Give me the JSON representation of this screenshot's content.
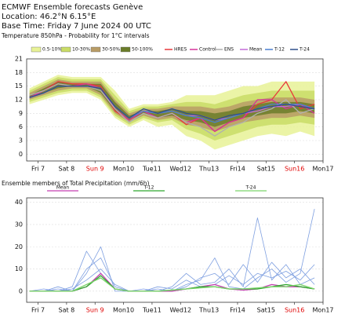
{
  "chart_data": [
    {
      "type": "line",
      "title": "ECMWF Ensemble forecasts Genève",
      "subtitle": [
        "Location:  46.2°N 6.15°E",
        "Base Time: Friday  7 June 2024 00 UTC"
      ],
      "description": "Temperature 850hPa - Probability for 1°C intervals",
      "x": [
        0,
        0.5,
        1,
        1.5,
        2,
        2.5,
        3,
        3.5,
        4,
        4.5,
        5,
        5.5,
        6,
        6.5,
        7,
        7.5,
        8,
        8.5,
        9,
        9.5,
        10
      ],
      "xlim": [
        -0.1,
        10.3
      ],
      "xticks": [
        {
          "value": 0.3,
          "label": "Fri 7"
        },
        {
          "value": 1.3,
          "label": "Sat 8"
        },
        {
          "value": 2.3,
          "label": "Sun 9"
        },
        {
          "value": 3.3,
          "label": "Mon10"
        },
        {
          "value": 4.3,
          "label": "Tue11"
        },
        {
          "value": 5.3,
          "label": "Wed12"
        },
        {
          "value": 6.3,
          "label": "Thu13"
        },
        {
          "value": 7.3,
          "label": "Fri14"
        },
        {
          "value": 8.3,
          "label": "Sat15"
        },
        {
          "value": 9.3,
          "label": "Sun16"
        },
        {
          "value": 10.3,
          "label": "Mon17"
        }
      ],
      "highlight_ticks": [
        2,
        9
      ],
      "highlight_color": "#e00000",
      "ylim": [
        -1.5,
        21
      ],
      "yticks": [
        0,
        3,
        6,
        9,
        12,
        15,
        18,
        21
      ],
      "grid": true,
      "bands": [
        {
          "name": "0.5-10%",
          "color": "#e8f296",
          "lower": [
            11,
            12,
            13,
            13.5,
            13.5,
            12,
            8,
            6,
            7.5,
            6,
            6.5,
            4,
            3,
            1,
            2,
            3,
            4,
            4.5,
            4,
            5,
            4
          ],
          "upper": [
            14.5,
            16,
            17.5,
            17,
            17,
            17,
            14,
            10,
            11,
            11,
            11.5,
            13,
            13,
            13,
            14,
            15,
            15,
            16,
            16,
            16,
            16
          ]
        },
        {
          "name": "10-30%",
          "color": "#c9dc66",
          "lower": [
            11.5,
            12.5,
            13.5,
            14,
            14,
            12.5,
            8.5,
            6.5,
            8,
            7,
            7.5,
            5.5,
            4.5,
            3,
            4,
            5,
            6,
            6.5,
            6.5,
            7,
            6.5
          ],
          "upper": [
            14,
            15.5,
            17,
            16.5,
            16.5,
            16.5,
            13,
            9.5,
            10.5,
            10.5,
            11,
            11.5,
            11.5,
            11,
            12,
            13,
            13.5,
            14,
            14,
            14,
            14
          ]
        },
        {
          "name": "30-50%",
          "color": "#b89c66",
          "lower": [
            12,
            13,
            14,
            14.5,
            14.5,
            13,
            9,
            7,
            8.5,
            7.5,
            8,
            6.5,
            6,
            5,
            6,
            7,
            7.5,
            8,
            8,
            8.5,
            8
          ],
          "upper": [
            13.5,
            15,
            16.5,
            16,
            16,
            16,
            12,
            9,
            10,
            10,
            10.5,
            10.5,
            10.5,
            10,
            10.5,
            11.5,
            12,
            12.5,
            12.5,
            12.5,
            12
          ]
        },
        {
          "name": "50-100%",
          "color": "#6b7d2a",
          "lower": [
            12.3,
            13.5,
            14.5,
            15,
            15,
            13.5,
            9.5,
            7.5,
            9,
            8,
            8.5,
            7.5,
            7,
            6,
            7,
            8,
            8.5,
            9,
            9,
            9.5,
            9
          ],
          "upper": [
            13,
            14.5,
            16,
            15.5,
            15.5,
            15.5,
            11.5,
            8.5,
            9.5,
            9.5,
            10,
            9.5,
            9.5,
            9,
            9.5,
            10.5,
            11,
            11.5,
            11.5,
            11.5,
            11
          ]
        }
      ],
      "series": [
        {
          "name": "HRES",
          "color": "#e8393c",
          "values": [
            12.5,
            14,
            16,
            15.5,
            15.5,
            15,
            9.5,
            7.5,
            9.5,
            8,
            9,
            6.5,
            8,
            5,
            7,
            8,
            11,
            12,
            16,
            10,
            11
          ]
        },
        {
          "name": "Control",
          "color": "#d6339a",
          "values": [
            12.5,
            14,
            15.5,
            15,
            15.5,
            14.5,
            10,
            7.5,
            9.5,
            8,
            9,
            7,
            8,
            5,
            7,
            8,
            12,
            12,
            10,
            11,
            9
          ]
        },
        {
          "name": "ENS",
          "color": "#b0b0b0",
          "values": [
            13,
            14,
            15.5,
            15,
            15,
            14,
            10,
            7,
            9,
            8,
            9,
            7,
            6,
            4,
            6,
            7,
            9,
            10,
            12,
            9,
            10
          ]
        },
        {
          "name": "Mean",
          "color": "#c36ad8",
          "values": [
            12.5,
            13.5,
            15,
            15,
            15,
            14.5,
            10.5,
            8,
            9.5,
            9,
            9.5,
            8.5,
            8.5,
            7.5,
            8,
            9,
            9.5,
            10.5,
            10.5,
            11,
            10
          ]
        },
        {
          "name": "T-12",
          "color": "#4a7fd0",
          "values": [
            12.5,
            13.5,
            15,
            15,
            15,
            14.5,
            10.5,
            8,
            9.5,
            9,
            9.5,
            8.5,
            8,
            7,
            8,
            9,
            10,
            11,
            11,
            11,
            10
          ]
        },
        {
          "name": "T-24",
          "color": "#2f4f8a",
          "values": [
            12.5,
            13.5,
            15,
            15,
            15,
            14.5,
            10.5,
            8,
            10,
            9,
            10,
            9,
            8.5,
            7.5,
            8.5,
            9,
            10,
            10.5,
            11,
            10.5,
            10
          ]
        }
      ]
    },
    {
      "type": "line",
      "title": "Ensemble members of Total Precipitation (mm/6h)",
      "x": [
        0,
        0.5,
        1,
        1.5,
        2,
        2.5,
        3,
        3.5,
        4,
        4.5,
        5,
        5.5,
        6,
        6.5,
        7,
        7.5,
        8,
        8.5,
        9,
        9.5,
        10
      ],
      "xlim": [
        -0.1,
        10.3
      ],
      "xticks": [
        {
          "value": 0.3,
          "label": "Fri 7"
        },
        {
          "value": 1.3,
          "label": "Sat 8"
        },
        {
          "value": 2.3,
          "label": "Sun 9"
        },
        {
          "value": 3.3,
          "label": "Mon10"
        },
        {
          "value": 4.3,
          "label": "Tue11"
        },
        {
          "value": 5.3,
          "label": "Wed12"
        },
        {
          "value": 6.3,
          "label": "Thu13"
        },
        {
          "value": 7.3,
          "label": "Fri14"
        },
        {
          "value": 8.3,
          "label": "Sat15"
        },
        {
          "value": 9.3,
          "label": "Sun16"
        },
        {
          "value": 10.3,
          "label": "Mon17"
        }
      ],
      "highlight_ticks": [
        2,
        9
      ],
      "highlight_color": "#e00000",
      "ylim": [
        -5,
        42
      ],
      "yticks": [
        0,
        10,
        20,
        30,
        40
      ],
      "grid": true,
      "member_color": "#7e9fe0",
      "members": [
        [
          0,
          0,
          1,
          0,
          10,
          15,
          2,
          0,
          0,
          1,
          0,
          3,
          5,
          15,
          2,
          1,
          6,
          10,
          4,
          8,
          37
        ],
        [
          0,
          1,
          0,
          2,
          18,
          8,
          1,
          0,
          0,
          0,
          2,
          8,
          3,
          4,
          10,
          2,
          33,
          5,
          12,
          3,
          6
        ],
        [
          0,
          0,
          0,
          1,
          5,
          10,
          3,
          0,
          1,
          0,
          0,
          2,
          6,
          8,
          3,
          12,
          4,
          13,
          6,
          10,
          3
        ],
        [
          0,
          0,
          2,
          0,
          8,
          20,
          0,
          0,
          0,
          2,
          1,
          5,
          2,
          3,
          7,
          3,
          8,
          6,
          9,
          5,
          12
        ]
      ],
      "series": [
        {
          "name": "Mean",
          "color": "#c33fb0",
          "values": [
            0,
            0,
            0,
            0,
            2,
            8,
            1,
            0,
            0,
            0,
            0,
            1,
            2,
            3,
            1,
            0.5,
            1,
            3,
            2,
            2,
            1
          ]
        },
        {
          "name": "T-12",
          "color": "#2fa82f",
          "values": [
            0,
            0,
            0,
            0,
            2,
            7,
            1,
            0,
            0,
            0,
            0.5,
            1,
            2,
            2,
            1,
            1,
            1,
            2,
            3,
            2,
            1
          ]
        },
        {
          "name": "T-24",
          "color": "#7ad46a",
          "values": [
            0,
            0,
            0,
            0,
            3,
            6,
            1,
            0,
            0,
            0,
            0.5,
            1,
            1.5,
            2,
            1,
            1,
            1.5,
            2,
            2,
            3,
            1
          ]
        }
      ]
    }
  ]
}
